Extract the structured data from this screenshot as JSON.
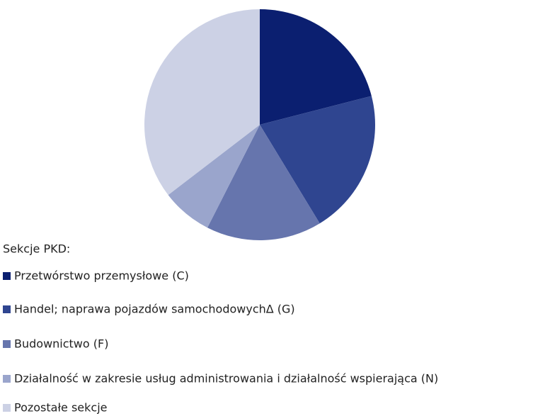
{
  "chart_data": {
    "type": "pie",
    "legend_title": "Sekcje PKD:",
    "series": [
      {
        "name": "Przetwórstwo przemysłowe (C)",
        "color": "#0b1f70",
        "value": 21
      },
      {
        "name": "Handel; naprawa pojazdów samochodowychΔ (G)",
        "color": "#2f4590",
        "value": 20.3
      },
      {
        "name": "Budownictwo (F)",
        "color": "#6675ad",
        "value": 16.2
      },
      {
        "name": "Działalność w zakresie usług administrowania i działalność wspierająca (N)",
        "color": "#9aa5cc",
        "value": 7.1
      },
      {
        "name": "Pozostałe sekcje",
        "color": "#ccd1e5",
        "value": 35.4
      }
    ]
  }
}
